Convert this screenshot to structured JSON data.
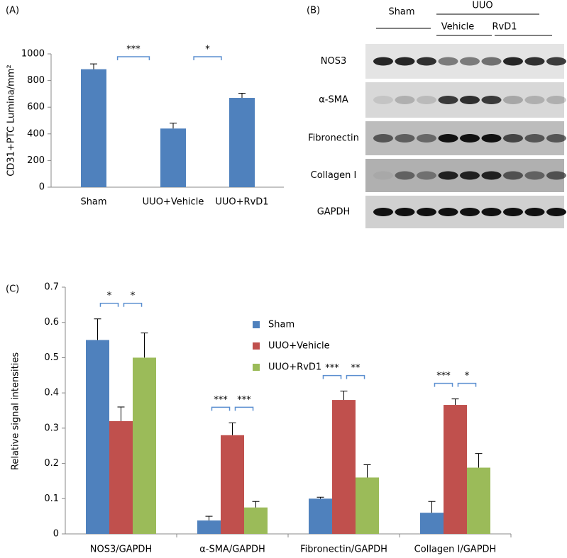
{
  "chart_data": [
    {
      "type": "bar",
      "panel_label": "(A)",
      "y_label": "CD31+PTC Lumina/mm²",
      "categories": [
        "Sham",
        "UUO+Vehicle",
        "UUO+RvD1"
      ],
      "values": [
        885,
        440,
        670
      ],
      "errors": [
        40,
        40,
        35
      ],
      "color": "#4f81bd",
      "ylim": [
        0,
        1000
      ],
      "yticks": [
        0,
        200,
        400,
        600,
        800,
        1000
      ],
      "significance": [
        "***",
        "*"
      ]
    },
    {
      "type": "grouped_bar",
      "panel_label": "(C)",
      "y_label": "Relative signal intensities",
      "categories": [
        "NOS3/GAPDH",
        "α-SMA/GAPDH",
        "Fibronectin/GAPDH",
        "Collagen I/GAPDH"
      ],
      "series": [
        {
          "name": "Sham",
          "color": "#4f81bd",
          "values": [
            0.55,
            0.038,
            0.1,
            0.06
          ],
          "errors": [
            0.06,
            0.012,
            0.004,
            0.032
          ]
        },
        {
          "name": "UUO+Vehicle",
          "color": "#c0504d",
          "values": [
            0.32,
            0.28,
            0.38,
            0.366
          ],
          "errors": [
            0.04,
            0.035,
            0.025,
            0.017
          ]
        },
        {
          "name": "UUO+RvD1",
          "color": "#9bbb59",
          "values": [
            0.5,
            0.075,
            0.16,
            0.188
          ],
          "errors": [
            0.07,
            0.017,
            0.036,
            0.04
          ]
        }
      ],
      "ylim": [
        0,
        0.7
      ],
      "yticks": [
        0,
        0.1,
        0.2,
        0.3,
        0.4,
        0.5,
        0.6,
        0.7
      ],
      "legend": "upper center",
      "significance": [
        [
          "*",
          "*"
        ],
        [
          "***",
          "***"
        ],
        [
          "***",
          "**"
        ],
        [
          "***",
          "*"
        ]
      ]
    }
  ],
  "blot": {
    "panel_label": "(B)",
    "sham": "Sham",
    "uuo": "UUO",
    "vehicle": "Vehicle",
    "rvd1": "RvD1",
    "rows": [
      "NOS3",
      "α-SMA",
      "Fibronectin",
      "Collagen I",
      "GAPDH"
    ]
  }
}
